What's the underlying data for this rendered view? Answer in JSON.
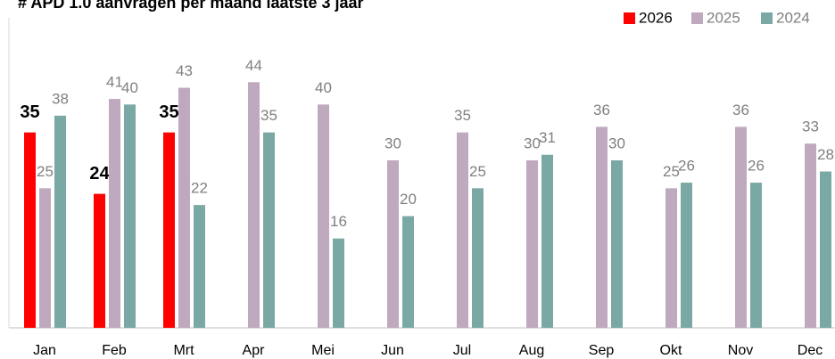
{
  "chart_data": {
    "type": "bar",
    "title": "# APD 1.0 aanvragen per maand laatste 3 jaar",
    "categories": [
      "Jan",
      "Feb",
      "Mrt",
      "Apr",
      "Mei",
      "Jun",
      "Jul",
      "Aug",
      "Sep",
      "Okt",
      "Nov",
      "Dec"
    ],
    "series": [
      {
        "name": "2026",
        "color": "#ff0000",
        "values": [
          35,
          24,
          35,
          null,
          null,
          null,
          null,
          null,
          null,
          null,
          null,
          null
        ]
      },
      {
        "name": "2025",
        "color": "#bfa9bf",
        "values": [
          25,
          41,
          43,
          44,
          40,
          30,
          35,
          30,
          36,
          25,
          36,
          33
        ]
      },
      {
        "name": "2024",
        "color": "#7aa8a4",
        "values": [
          38,
          40,
          22,
          35,
          16,
          20,
          25,
          31,
          30,
          26,
          26,
          28
        ]
      }
    ],
    "ylim": [
      0,
      60
    ],
    "legend": "top-right"
  }
}
